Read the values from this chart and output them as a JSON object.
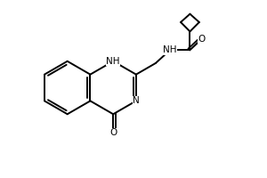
{
  "background": "#ffffff",
  "line_color": "#000000",
  "line_width": 1.4,
  "font_size": 7.5,
  "fig_width": 3.0,
  "fig_height": 2.0,
  "dpi": 100,
  "xlim": [
    0.0,
    10.0
  ],
  "ylim": [
    0.0,
    6.5
  ]
}
